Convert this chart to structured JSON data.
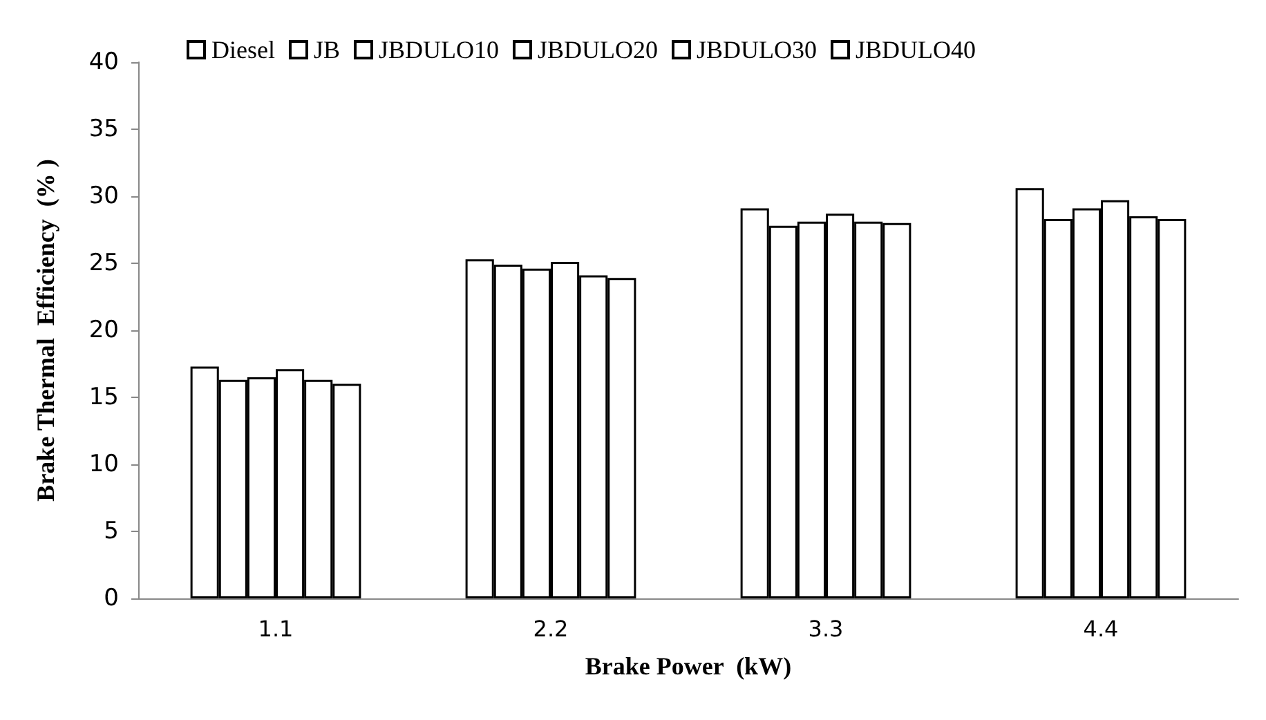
{
  "chart_data": {
    "type": "bar",
    "xlabel": "Brake Power  (kW)",
    "ylabel": "Brake Thermal  Efficiency  (% )",
    "categories": [
      "1.1",
      "2.2",
      "3.3",
      "4.4"
    ],
    "series": [
      {
        "name": "Diesel",
        "color": "#ffffff",
        "values": [
          17.3,
          25.3,
          29.1,
          30.6
        ]
      },
      {
        "name": "JB",
        "color": "#ffffff",
        "values": [
          16.3,
          24.9,
          27.8,
          28.3
        ]
      },
      {
        "name": "JBDULO10",
        "color": "#ffffff",
        "values": [
          16.5,
          24.6,
          28.1,
          29.1
        ]
      },
      {
        "name": "JBDULO20",
        "color": "#ffffff",
        "values": [
          17.1,
          25.1,
          28.7,
          29.7
        ]
      },
      {
        "name": "JBDULO30",
        "color": "#ffffff",
        "values": [
          16.3,
          24.1,
          28.1,
          28.5
        ]
      },
      {
        "name": "JBDULO40",
        "color": "#ffffff",
        "values": [
          16.0,
          23.9,
          28.0,
          28.3
        ]
      }
    ],
    "ylim": [
      0,
      40
    ],
    "yticks": [
      0,
      5,
      10,
      15,
      20,
      25,
      30,
      35,
      40
    ],
    "grid": false,
    "legend": "top"
  }
}
